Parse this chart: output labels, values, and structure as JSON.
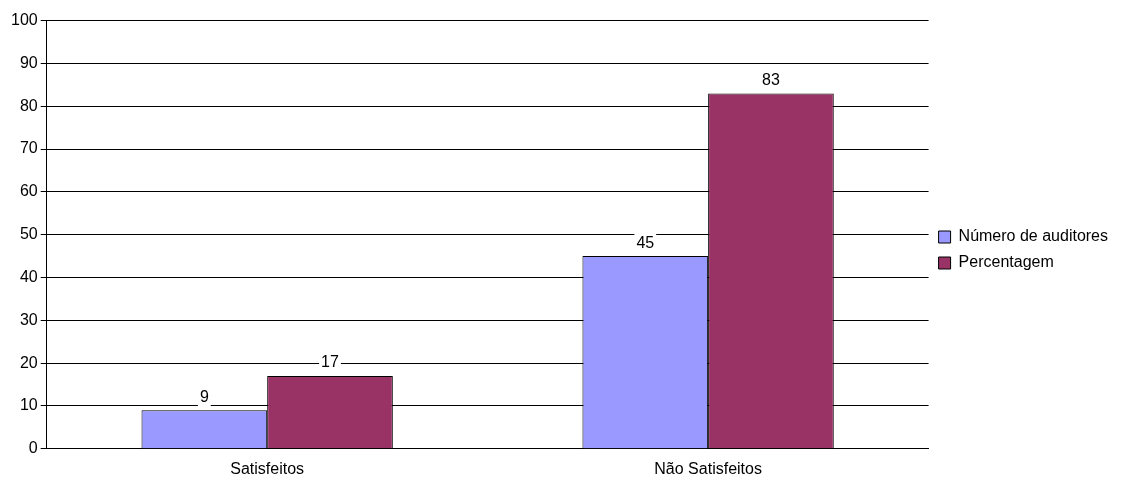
{
  "chart_data": {
    "type": "bar",
    "categories": [
      "Satisfeitos",
      "Não Satisfeitos"
    ],
    "series": [
      {
        "name": "Número de auditores",
        "color": "#9999ff",
        "values": [
          9,
          45
        ]
      },
      {
        "name": "Percentagem",
        "color": "#993366",
        "values": [
          17,
          83
        ]
      }
    ],
    "ylim": [
      0,
      100
    ],
    "yticks": [
      0,
      10,
      20,
      30,
      40,
      50,
      60,
      70,
      80,
      90,
      100
    ],
    "grid": "y",
    "legend": "right",
    "data_labels": true
  }
}
